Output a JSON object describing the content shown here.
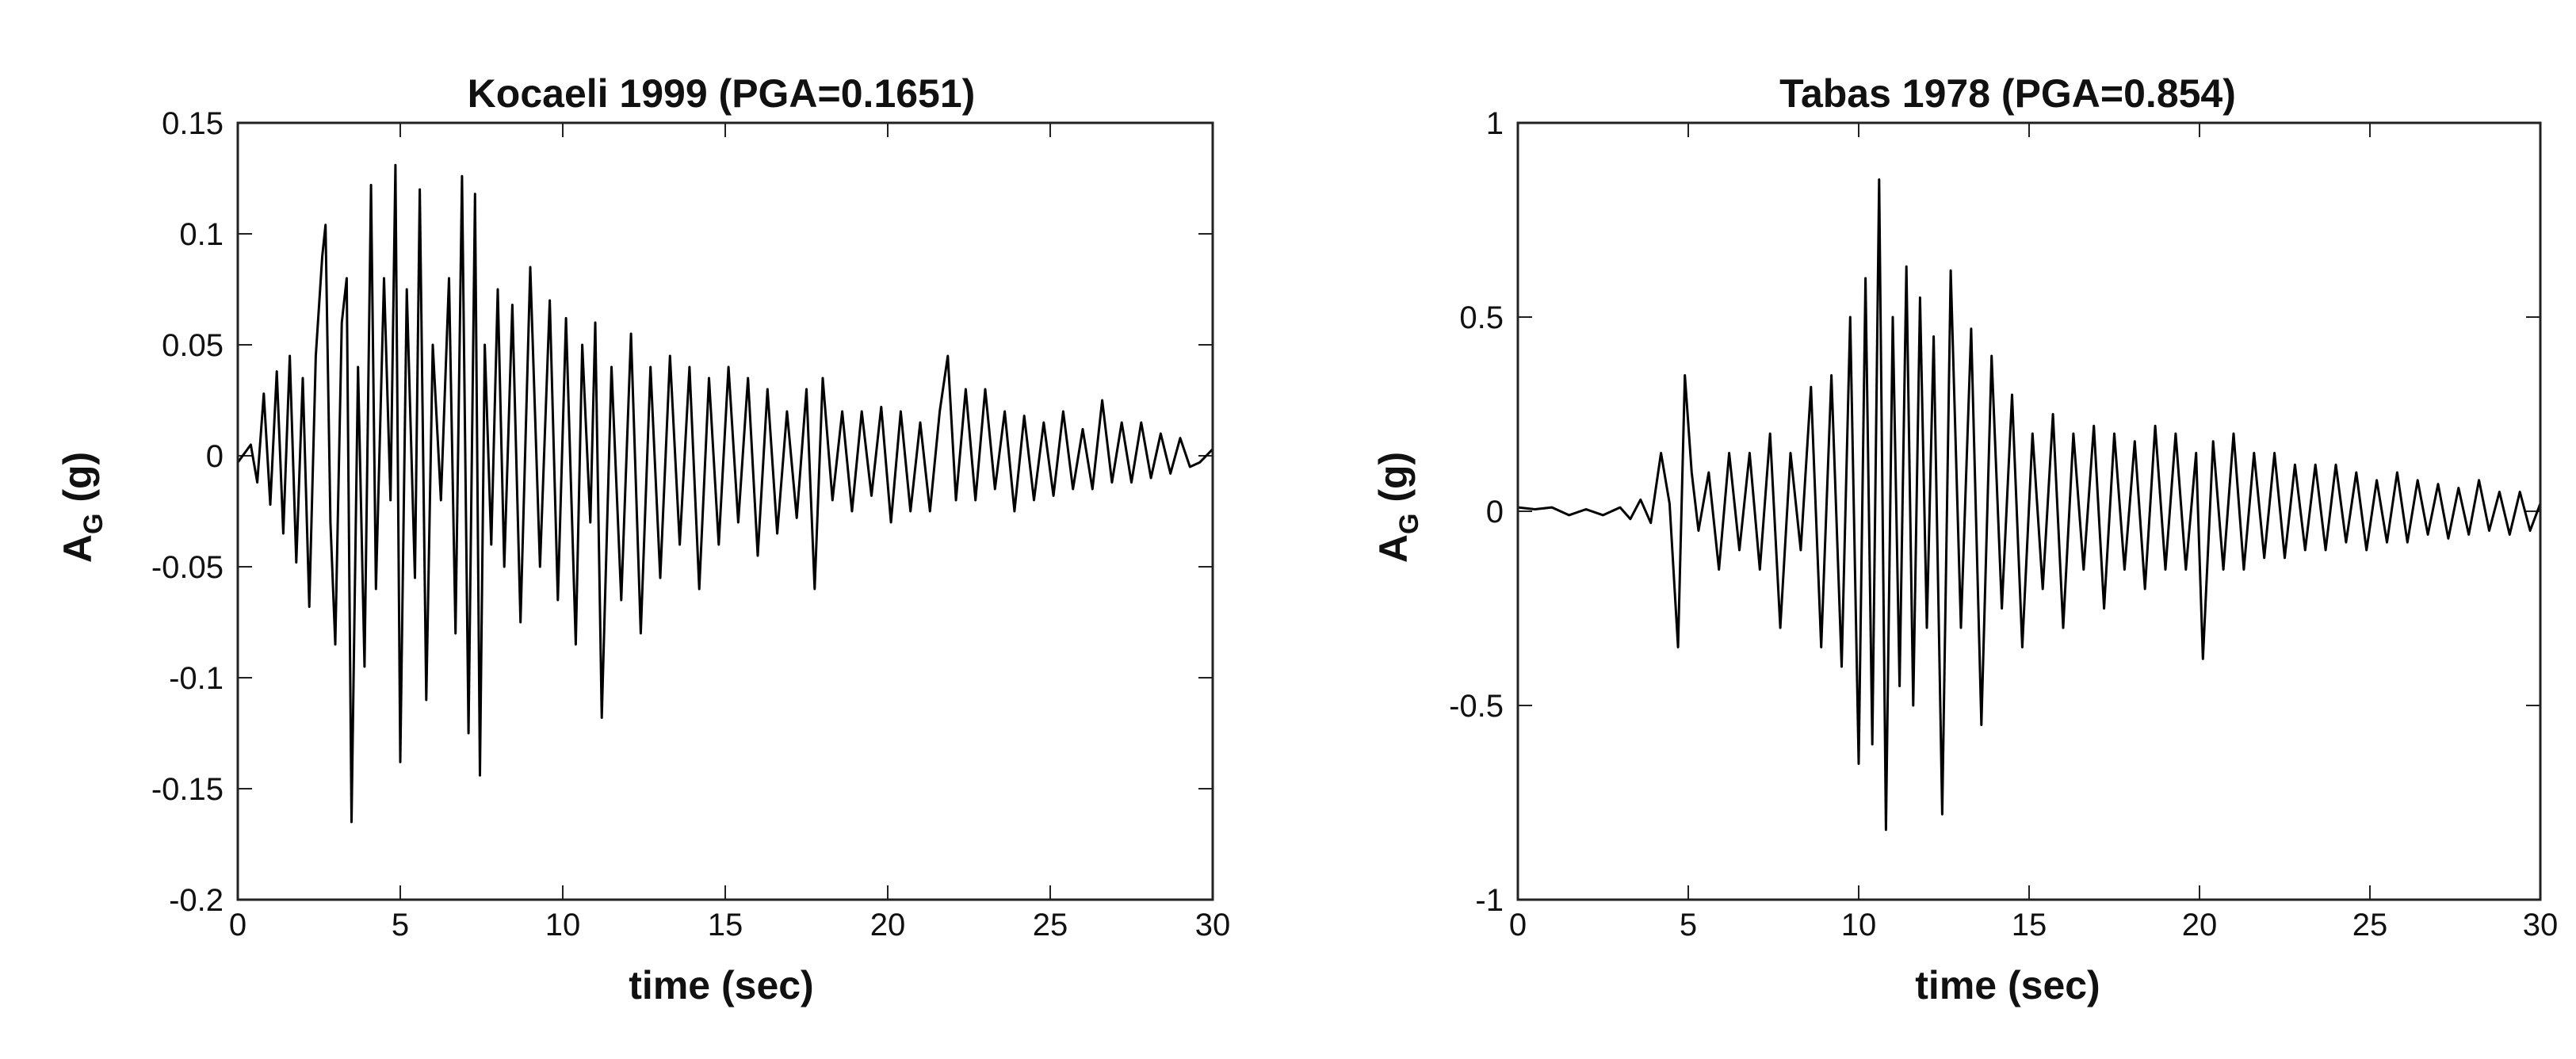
{
  "chart_data": [
    {
      "type": "line",
      "title": "Kocaeli 1999 (PGA=0.1651)",
      "xlabel": "time (sec)",
      "ylabel_main": "A",
      "ylabel_sub": "G",
      "ylabel_unit": " (g)",
      "xlim": [
        0,
        30
      ],
      "ylim": [
        -0.2,
        0.15
      ],
      "xticks": [
        0,
        5,
        10,
        15,
        20,
        25,
        30
      ],
      "xtick_labels": [
        "0",
        "5",
        "10",
        "15",
        "20",
        "25",
        "30"
      ],
      "yticks": [
        -0.2,
        -0.15,
        -0.1,
        -0.05,
        0,
        0.05,
        0.1,
        0.15
      ],
      "ytick_labels": [
        "-0.2",
        "-0.15",
        "-0.1",
        "-0.05",
        "0",
        "0.05",
        "0.1",
        "0.15"
      ],
      "grid": false,
      "color": "#000000",
      "series": [
        {
          "x": [
            0,
            0.4,
            0.6,
            0.8,
            1.0,
            1.2,
            1.4,
            1.6,
            1.8,
            2.0,
            2.2,
            2.4,
            2.6,
            2.7,
            2.85,
            3.0,
            3.2,
            3.35,
            3.5,
            3.7,
            3.9,
            4.1,
            4.25,
            4.5,
            4.7,
            4.85,
            5.0,
            5.2,
            5.45,
            5.6,
            5.8,
            6.0,
            6.25,
            6.5,
            6.7,
            6.9,
            7.1,
            7.3,
            7.45,
            7.6,
            7.8,
            8.0,
            8.2,
            8.45,
            8.7,
            9.0,
            9.3,
            9.6,
            9.85,
            10.1,
            10.4,
            10.6,
            10.85,
            11.0,
            11.2,
            11.5,
            11.8,
            12.1,
            12.4,
            12.7,
            13.0,
            13.3,
            13.6,
            13.9,
            14.2,
            14.5,
            14.8,
            15.1,
            15.4,
            15.7,
            16.0,
            16.3,
            16.6,
            16.9,
            17.2,
            17.5,
            17.75,
            18.0,
            18.3,
            18.6,
            18.9,
            19.2,
            19.5,
            19.8,
            20.1,
            20.4,
            20.7,
            21.0,
            21.3,
            21.6,
            21.85,
            22.1,
            22.4,
            22.7,
            23.0,
            23.3,
            23.6,
            23.9,
            24.2,
            24.5,
            24.8,
            25.1,
            25.4,
            25.7,
            26.0,
            26.3,
            26.6,
            26.9,
            27.2,
            27.5,
            27.8,
            28.1,
            28.4,
            28.7,
            29.0,
            29.3,
            29.6,
            30.0
          ],
          "y": [
            -0.003,
            0.005,
            -0.012,
            0.028,
            -0.022,
            0.038,
            -0.035,
            0.045,
            -0.048,
            0.035,
            -0.068,
            0.045,
            0.09,
            0.104,
            -0.03,
            -0.085,
            0.06,
            0.08,
            -0.165,
            0.04,
            -0.095,
            0.122,
            -0.06,
            0.08,
            -0.02,
            0.131,
            -0.138,
            0.075,
            -0.055,
            0.12,
            -0.11,
            0.05,
            -0.02,
            0.08,
            -0.08,
            0.126,
            -0.125,
            0.118,
            -0.144,
            0.05,
            -0.04,
            0.075,
            -0.05,
            0.068,
            -0.075,
            0.085,
            -0.05,
            0.07,
            -0.065,
            0.062,
            -0.085,
            0.05,
            -0.03,
            0.06,
            -0.118,
            0.04,
            -0.065,
            0.055,
            -0.08,
            0.04,
            -0.055,
            0.045,
            -0.04,
            0.04,
            -0.06,
            0.035,
            -0.04,
            0.04,
            -0.03,
            0.035,
            -0.045,
            0.03,
            -0.035,
            0.02,
            -0.028,
            0.03,
            -0.06,
            0.035,
            -0.02,
            0.02,
            -0.025,
            0.02,
            -0.018,
            0.022,
            -0.03,
            0.02,
            -0.025,
            0.015,
            -0.025,
            0.02,
            0.045,
            -0.02,
            0.03,
            -0.02,
            0.03,
            -0.015,
            0.02,
            -0.025,
            0.018,
            -0.02,
            0.015,
            -0.018,
            0.02,
            -0.015,
            0.012,
            -0.015,
            0.025,
            -0.012,
            0.015,
            -0.012,
            0.015,
            -0.01,
            0.01,
            -0.008,
            0.008,
            -0.005,
            -0.003,
            0.003
          ]
        }
      ]
    },
    {
      "type": "line",
      "title": "Tabas 1978 (PGA=0.854)",
      "xlabel": "time (sec)",
      "ylabel_main": "A",
      "ylabel_sub": "G",
      "ylabel_unit": " (g)",
      "xlim": [
        0,
        30
      ],
      "ylim": [
        -1,
        1
      ],
      "xticks": [
        0,
        5,
        10,
        15,
        20,
        25,
        30
      ],
      "xtick_labels": [
        "0",
        "5",
        "10",
        "15",
        "20",
        "25",
        "30"
      ],
      "yticks": [
        -1,
        -0.5,
        0,
        0.5,
        1
      ],
      "ytick_labels": [
        "-1",
        "-0.5",
        "0",
        "0.5",
        "1"
      ],
      "grid": false,
      "color": "#000000",
      "series": [
        {
          "x": [
            0,
            0.5,
            1.0,
            1.5,
            2.0,
            2.5,
            3.0,
            3.3,
            3.6,
            3.9,
            4.2,
            4.45,
            4.7,
            4.9,
            5.1,
            5.3,
            5.6,
            5.9,
            6.2,
            6.5,
            6.8,
            7.1,
            7.4,
            7.7,
            8.0,
            8.3,
            8.6,
            8.9,
            9.2,
            9.5,
            9.75,
            10.0,
            10.2,
            10.4,
            10.6,
            10.8,
            11.0,
            11.2,
            11.4,
            11.6,
            11.8,
            12.0,
            12.2,
            12.45,
            12.7,
            13.0,
            13.3,
            13.6,
            13.9,
            14.2,
            14.5,
            14.8,
            15.1,
            15.4,
            15.7,
            16.0,
            16.3,
            16.6,
            16.9,
            17.2,
            17.5,
            17.8,
            18.1,
            18.4,
            18.7,
            19.0,
            19.3,
            19.6,
            19.9,
            20.1,
            20.4,
            20.7,
            21.0,
            21.3,
            21.6,
            21.9,
            22.2,
            22.5,
            22.8,
            23.1,
            23.4,
            23.7,
            24.0,
            24.3,
            24.6,
            24.9,
            25.2,
            25.5,
            25.8,
            26.1,
            26.4,
            26.7,
            27.0,
            27.3,
            27.6,
            27.9,
            28.2,
            28.5,
            28.8,
            29.1,
            29.4,
            29.7,
            30.0
          ],
          "y": [
            0.01,
            0.005,
            0.01,
            -0.01,
            0.005,
            -0.01,
            0.01,
            -0.02,
            0.03,
            -0.03,
            0.15,
            0.02,
            -0.35,
            0.35,
            0.1,
            -0.05,
            0.1,
            -0.15,
            0.15,
            -0.1,
            0.15,
            -0.15,
            0.2,
            -0.3,
            0.15,
            -0.1,
            0.32,
            -0.35,
            0.35,
            -0.4,
            0.5,
            -0.65,
            0.6,
            -0.6,
            0.854,
            -0.82,
            0.5,
            -0.45,
            0.63,
            -0.5,
            0.55,
            -0.3,
            0.45,
            -0.78,
            0.62,
            -0.3,
            0.47,
            -0.55,
            0.4,
            -0.25,
            0.3,
            -0.35,
            0.2,
            -0.2,
            0.25,
            -0.3,
            0.2,
            -0.15,
            0.22,
            -0.25,
            0.2,
            -0.15,
            0.18,
            -0.2,
            0.22,
            -0.15,
            0.2,
            -0.15,
            0.15,
            -0.38,
            0.18,
            -0.15,
            0.2,
            -0.15,
            0.15,
            -0.12,
            0.15,
            -0.12,
            0.12,
            -0.1,
            0.12,
            -0.1,
            0.12,
            -0.08,
            0.1,
            -0.1,
            0.08,
            -0.08,
            0.1,
            -0.08,
            0.08,
            -0.06,
            0.07,
            -0.07,
            0.06,
            -0.06,
            0.08,
            -0.05,
            0.05,
            -0.06,
            0.05,
            -0.05,
            0.02
          ]
        }
      ]
    }
  ]
}
